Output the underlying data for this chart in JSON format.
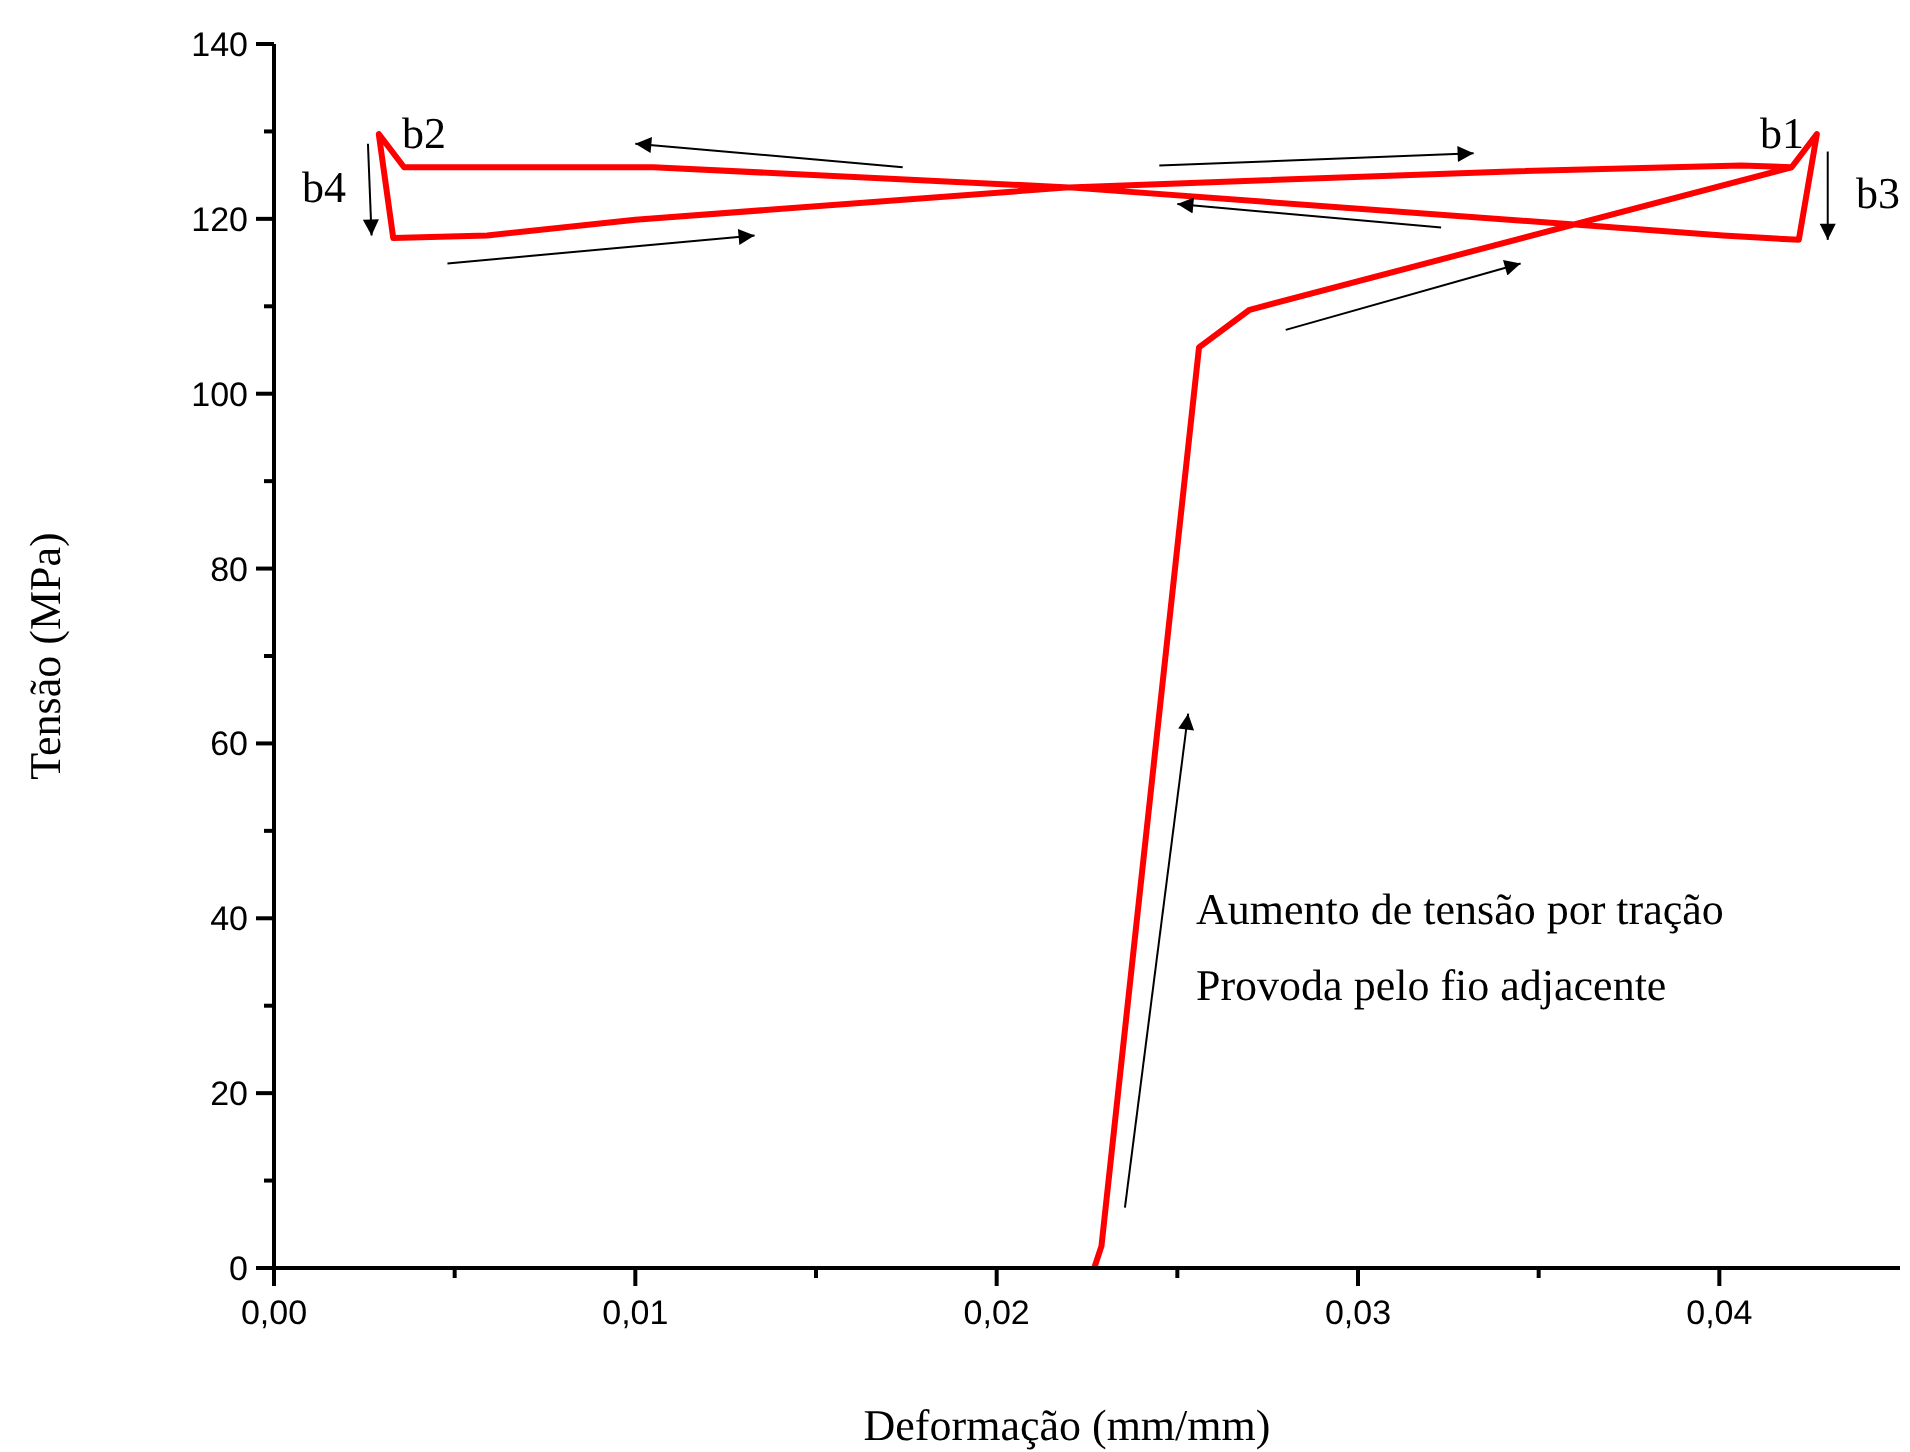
{
  "chart_data": {
    "type": "line",
    "xlabel": "Deformação (mm/mm)",
    "ylabel": "Tensão (MPa)",
    "xlim": [
      0,
      0.045
    ],
    "ylim": [
      0,
      140
    ],
    "xticks": [
      {
        "value": 0,
        "label": "0,00"
      },
      {
        "value": 0.005,
        "label": null
      },
      {
        "value": 0.01,
        "label": "0,01"
      },
      {
        "value": 0.015,
        "label": null
      },
      {
        "value": 0.02,
        "label": "0,02"
      },
      {
        "value": 0.025,
        "label": null
      },
      {
        "value": 0.03,
        "label": "0,03"
      },
      {
        "value": 0.035,
        "label": null
      },
      {
        "value": 0.04,
        "label": "0,04"
      }
    ],
    "yticks": [
      0,
      {
        "value": 10,
        "label": null
      },
      20,
      {
        "value": 30,
        "label": null
      },
      40,
      {
        "value": 50,
        "label": null
      },
      60,
      {
        "value": 70,
        "label": null
      },
      80,
      {
        "value": 90,
        "label": null
      },
      100,
      {
        "value": 110,
        "label": null
      },
      120,
      {
        "value": 130,
        "label": null
      },
      140
    ],
    "grid": false,
    "marker": "none",
    "line_style": "solid",
    "series": [
      {
        "color": "#ff0000",
        "x": [
          0.0227,
          0.0229,
          0.0256,
          0.027,
          0.042,
          0.0427,
          0.0422,
          0.0401,
          0.022,
          0.0105,
          0.0036,
          0.0029,
          0.0033,
          0.0059,
          0.01,
          0.022,
          0.034,
          0.0406,
          0.042
        ],
        "values": [
          0,
          2.5,
          105.3,
          109.6,
          125.9,
          129.7,
          117.6,
          118.1,
          123.6,
          125.9,
          125.9,
          129.7,
          117.8,
          118.1,
          119.9,
          123.6,
          125.4,
          126.1,
          125.9
        ]
      }
    ],
    "annotations": [
      "b1",
      "b2",
      "b3",
      "b4",
      "Aumento de tensão por tração",
      "Provoda pelo fio adjacente"
    ]
  }
}
